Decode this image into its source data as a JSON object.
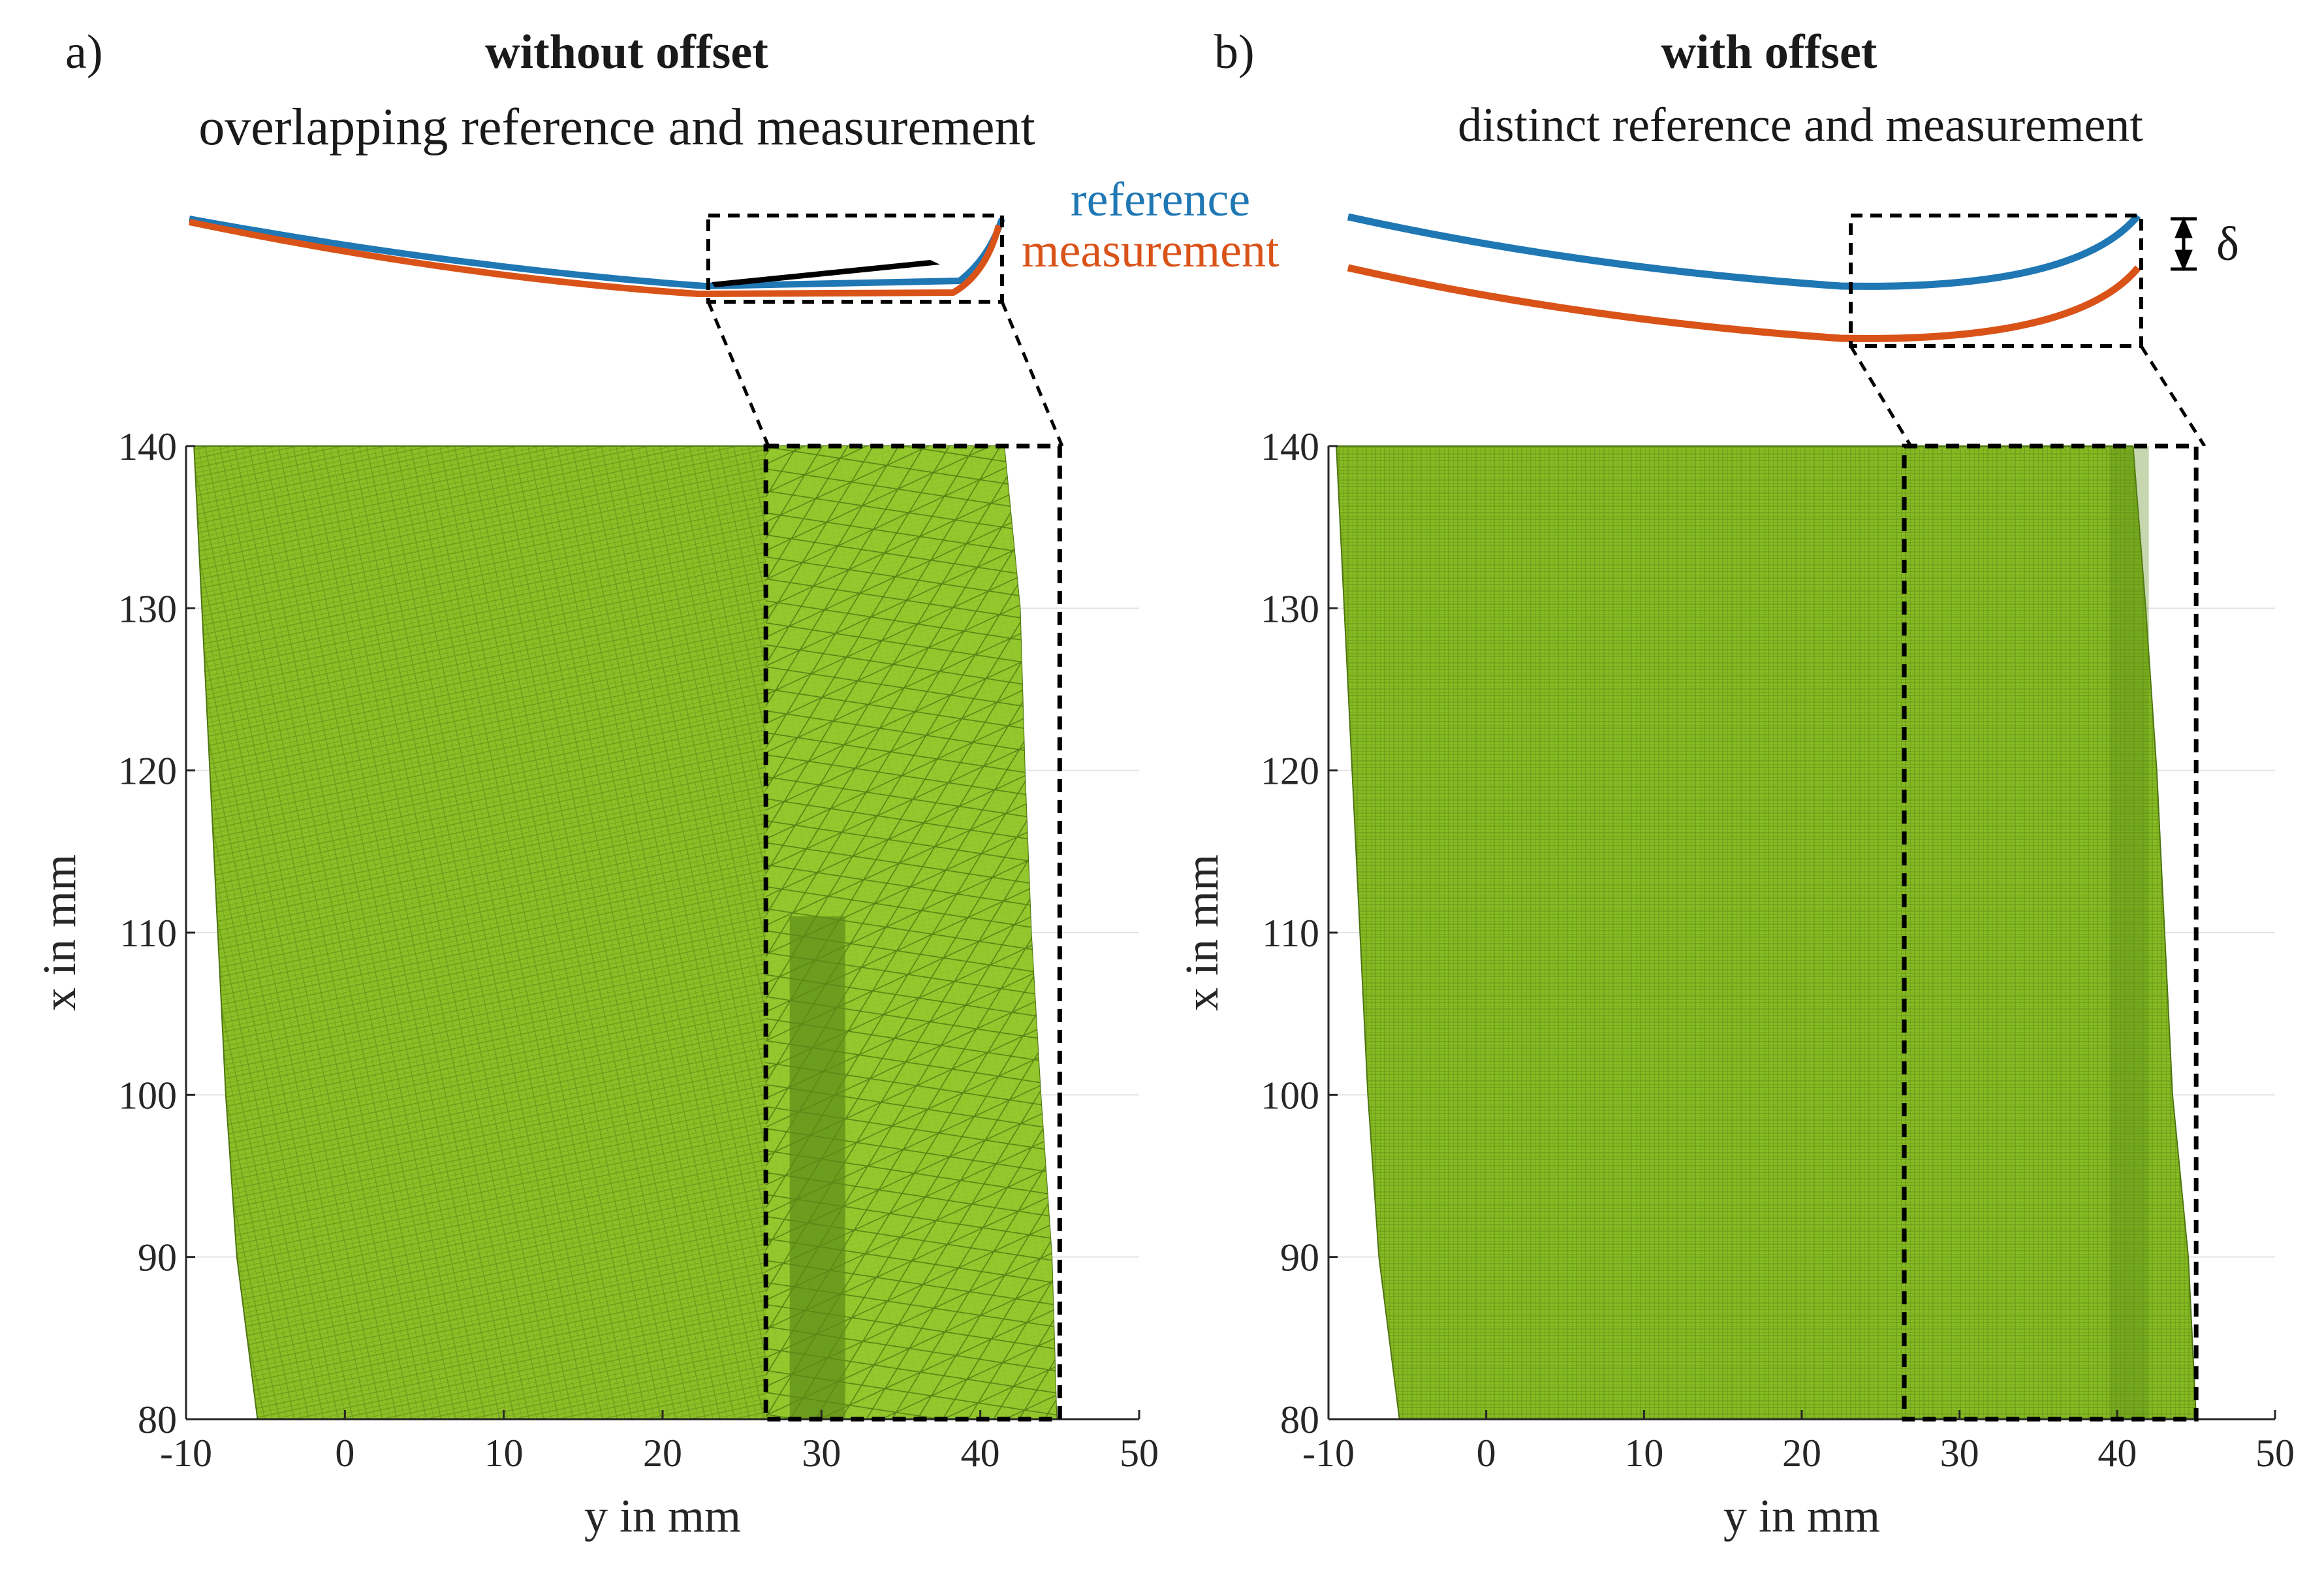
{
  "panels": [
    {
      "label": "a)",
      "title": "without offset",
      "subtitle": "overlapping reference and measurement"
    },
    {
      "label": "b)",
      "title": "with offset",
      "subtitle": "distinct reference and measurement",
      "offset_symbol": "δ"
    }
  ],
  "legend": {
    "reference": "reference",
    "measurement": "measurement"
  },
  "colors": {
    "reference": "#1f77b4",
    "measurement": "#d95319",
    "surface": "#8cbf26",
    "surface_dark": "#5c8a18",
    "grid": "#e3e3e3",
    "axis": "#262626"
  },
  "chart_data": [
    {
      "type": "heatmap",
      "title": "without offset",
      "xlabel": "y in mm",
      "ylabel": "x in mm",
      "xlim": [
        -10,
        50
      ],
      "ylim": [
        80,
        140
      ],
      "xticks": [
        -10,
        0,
        10,
        20,
        30,
        40,
        50
      ],
      "yticks": [
        80,
        90,
        100,
        110,
        120,
        130,
        140
      ],
      "surface_outline": {
        "left_edge": [
          [
            -9.5,
            140
          ],
          [
            -9,
            130
          ],
          [
            -8.5,
            120
          ],
          [
            -8,
            110
          ],
          [
            -7.5,
            100
          ],
          [
            -6.8,
            90
          ],
          [
            -5.5,
            80
          ]
        ],
        "right_edge": [
          [
            41.5,
            140
          ],
          [
            42.5,
            130
          ],
          [
            42.8,
            120
          ],
          [
            43.2,
            110
          ],
          [
            43.8,
            100
          ],
          [
            44.5,
            90
          ],
          [
            44.8,
            80
          ]
        ]
      },
      "highlight_region": {
        "y_range": [
          26.5,
          45
        ],
        "x_range": [
          80,
          140
        ]
      }
    },
    {
      "type": "heatmap",
      "title": "with offset",
      "xlabel": "y in mm",
      "ylabel": "x in mm",
      "xlim": [
        -10,
        50
      ],
      "ylim": [
        80,
        140
      ],
      "xticks": [
        -10,
        0,
        10,
        20,
        30,
        40,
        50
      ],
      "yticks": [
        80,
        90,
        100,
        110,
        120,
        130,
        140
      ],
      "surface_outline": {
        "left_edge": [
          [
            -9.5,
            140
          ],
          [
            -9,
            130
          ],
          [
            -8.5,
            120
          ],
          [
            -8,
            110
          ],
          [
            -7.5,
            100
          ],
          [
            -6.8,
            90
          ],
          [
            -5.5,
            80
          ]
        ],
        "right_edge": [
          [
            41,
            140
          ],
          [
            41.8,
            130
          ],
          [
            42.5,
            120
          ],
          [
            43,
            110
          ],
          [
            43.5,
            100
          ],
          [
            44.5,
            90
          ],
          [
            45,
            80
          ]
        ]
      },
      "highlight_region": {
        "y_range": [
          26.5,
          45
        ],
        "x_range": [
          80,
          140
        ]
      }
    }
  ]
}
